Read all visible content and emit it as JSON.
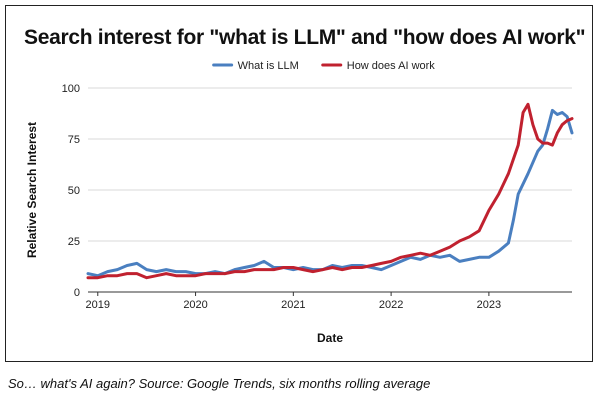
{
  "chart_data": {
    "type": "line",
    "title": "Search interest for \"what is LLM\" and \"how does AI work\"",
    "xlabel": "Date",
    "ylabel": "Relative Search Interest",
    "xlim": [
      2018.9,
      2023.85
    ],
    "ylim": [
      0,
      100
    ],
    "yticks": [
      0,
      25,
      50,
      75,
      100
    ],
    "xticks": [
      "2019",
      "2020",
      "2021",
      "2022",
      "2023"
    ],
    "grid": "horizontal",
    "legend_position": "top",
    "series": [
      {
        "name": "What is LLM",
        "color": "#4a7fc0",
        "x": [
          2018.9,
          2019.0,
          2019.1,
          2019.2,
          2019.3,
          2019.4,
          2019.5,
          2019.6,
          2019.7,
          2019.8,
          2019.9,
          2020.0,
          2020.1,
          2020.2,
          2020.3,
          2020.4,
          2020.5,
          2020.6,
          2020.7,
          2020.8,
          2020.9,
          2021.0,
          2021.1,
          2021.2,
          2021.3,
          2021.4,
          2021.5,
          2021.6,
          2021.7,
          2021.8,
          2021.9,
          2022.0,
          2022.1,
          2022.2,
          2022.3,
          2022.4,
          2022.5,
          2022.6,
          2022.7,
          2022.8,
          2022.9,
          2023.0,
          2023.1,
          2023.2,
          2023.25,
          2023.3,
          2023.4,
          2023.5,
          2023.55,
          2023.6,
          2023.65,
          2023.7,
          2023.75,
          2023.8,
          2023.85
        ],
        "y": [
          9,
          8,
          10,
          11,
          13,
          14,
          11,
          10,
          11,
          10,
          10,
          9,
          9,
          10,
          9,
          11,
          12,
          13,
          15,
          12,
          12,
          11,
          12,
          11,
          11,
          13,
          12,
          13,
          13,
          12,
          11,
          13,
          15,
          17,
          16,
          18,
          17,
          18,
          15,
          16,
          17,
          17,
          20,
          24,
          35,
          48,
          58,
          69,
          72,
          80,
          89,
          87,
          88,
          86,
          78
        ]
      },
      {
        "name": "How does AI work",
        "color": "#c0212f",
        "x": [
          2018.9,
          2019.0,
          2019.1,
          2019.2,
          2019.3,
          2019.4,
          2019.5,
          2019.6,
          2019.7,
          2019.8,
          2019.9,
          2020.0,
          2020.1,
          2020.2,
          2020.3,
          2020.4,
          2020.5,
          2020.6,
          2020.7,
          2020.8,
          2020.9,
          2021.0,
          2021.1,
          2021.2,
          2021.3,
          2021.4,
          2021.5,
          2021.6,
          2021.7,
          2021.8,
          2021.9,
          2022.0,
          2022.1,
          2022.2,
          2022.3,
          2022.4,
          2022.5,
          2022.6,
          2022.7,
          2022.8,
          2022.9,
          2023.0,
          2023.1,
          2023.2,
          2023.25,
          2023.3,
          2023.35,
          2023.4,
          2023.45,
          2023.5,
          2023.55,
          2023.6,
          2023.65,
          2023.7,
          2023.75,
          2023.8,
          2023.85
        ],
        "y": [
          7,
          7,
          8,
          8,
          9,
          9,
          7,
          8,
          9,
          8,
          8,
          8,
          9,
          9,
          9,
          10,
          10,
          11,
          11,
          11,
          12,
          12,
          11,
          10,
          11,
          12,
          11,
          12,
          12,
          13,
          14,
          15,
          17,
          18,
          19,
          18,
          20,
          22,
          25,
          27,
          30,
          40,
          48,
          58,
          65,
          72,
          88,
          92,
          82,
          75,
          73,
          73,
          72,
          78,
          82,
          84,
          85
        ]
      }
    ]
  },
  "caption": "So… what's AI again? Source: Google Trends, six months rolling average"
}
